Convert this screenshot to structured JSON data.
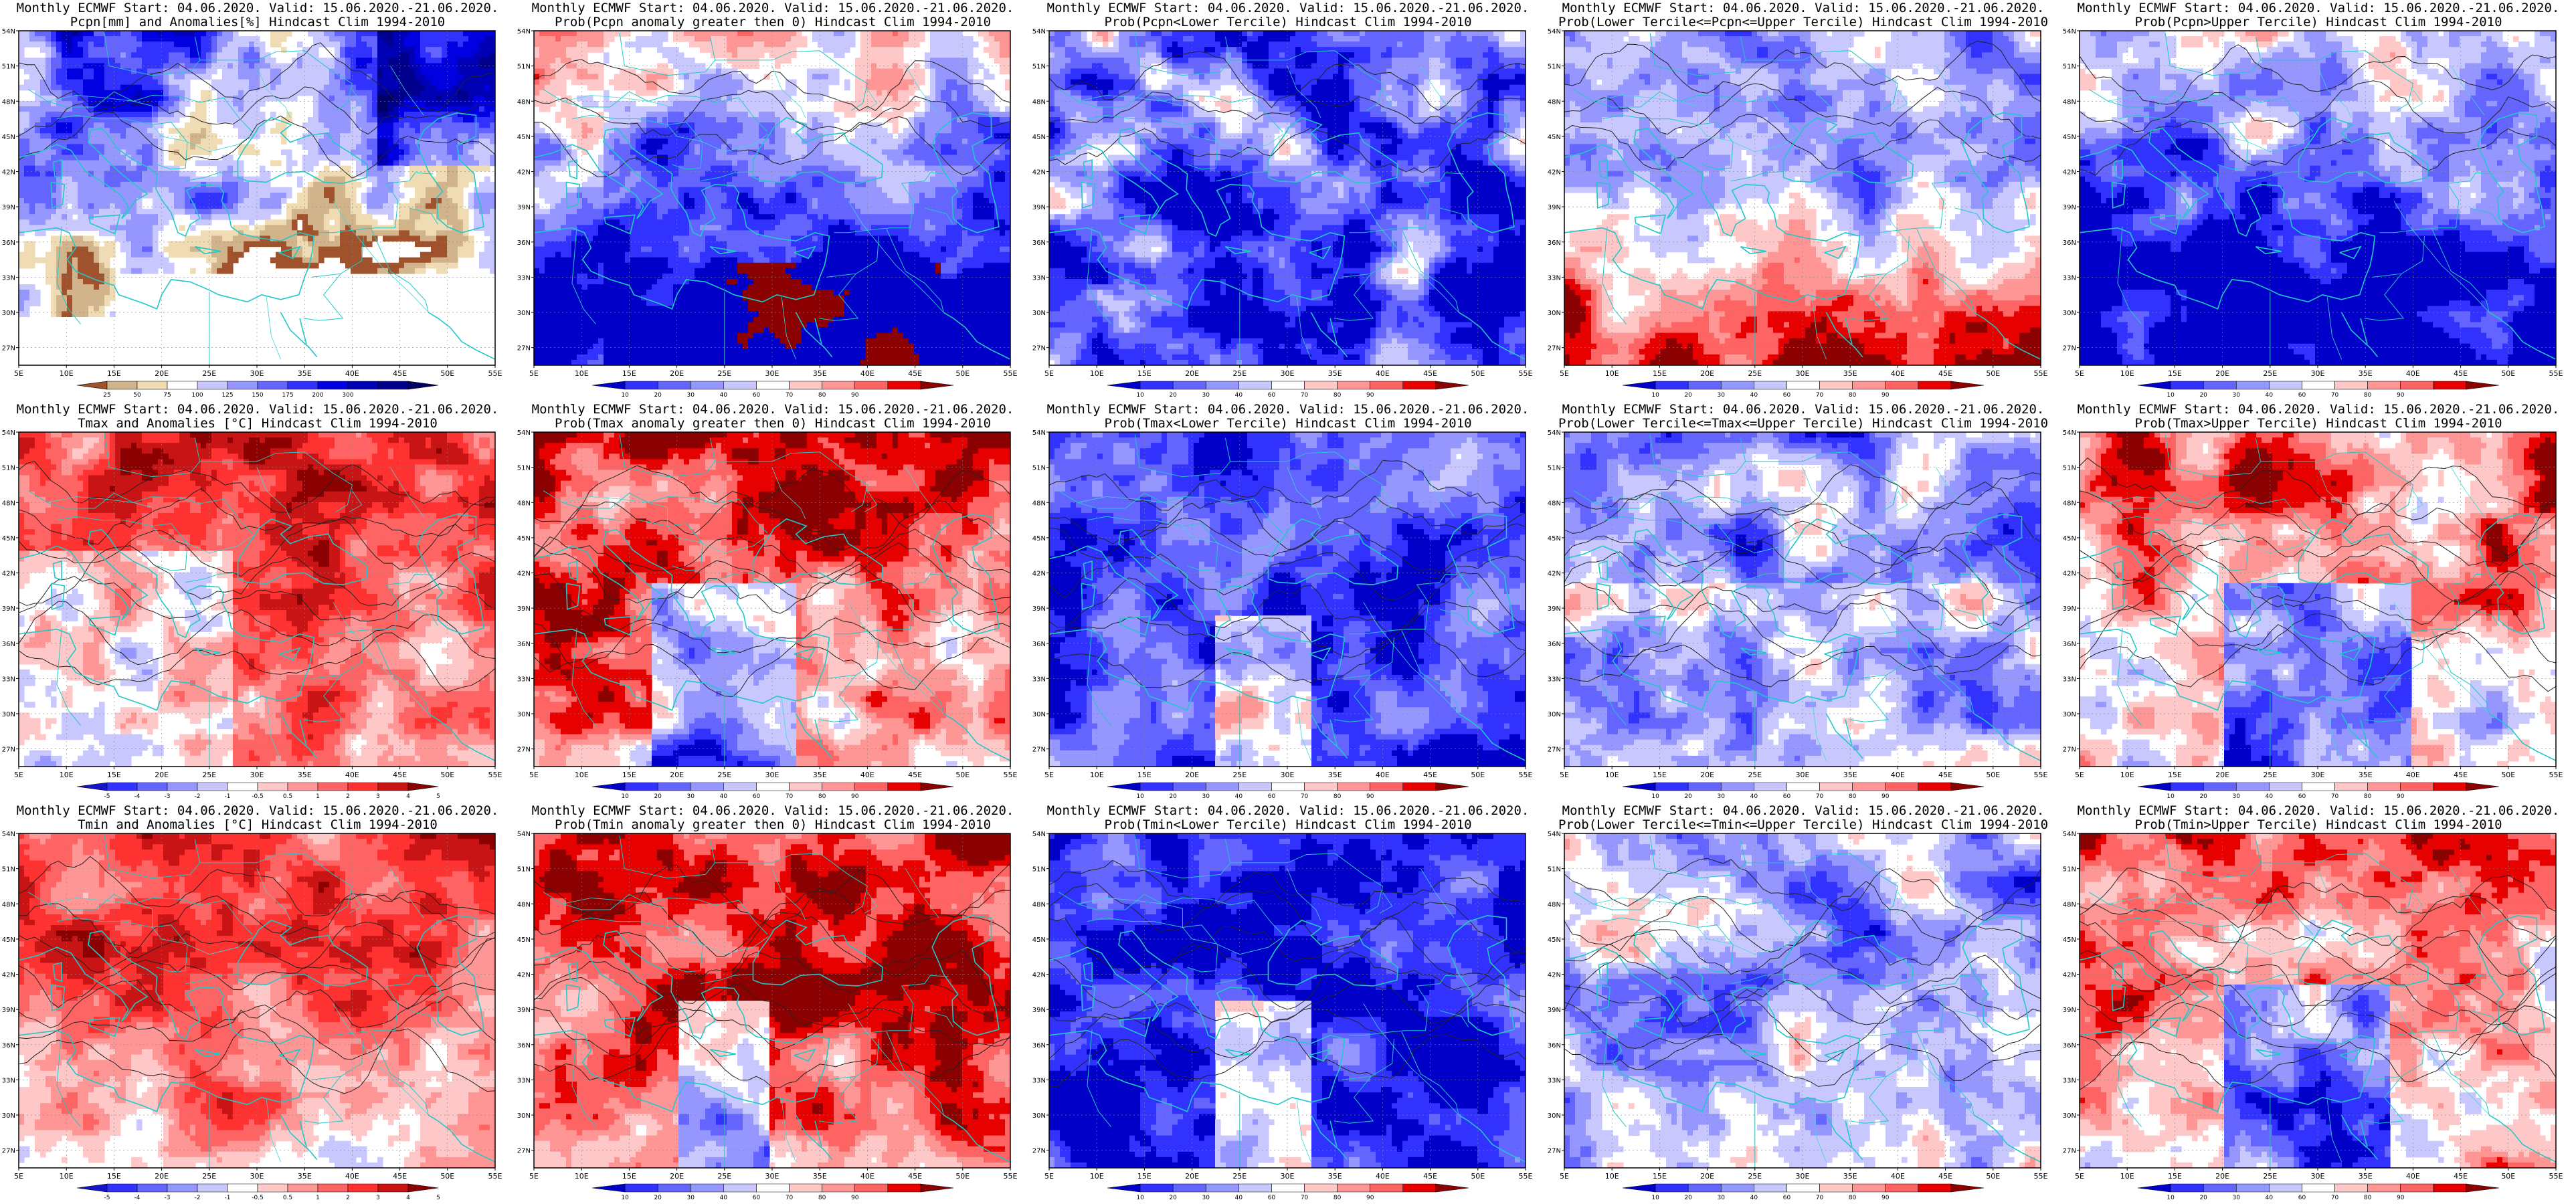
{
  "palettes": {
    "precip": [
      "#a0522d",
      "#d2b48c",
      "#f0dcb4",
      "#ffffff",
      "#c8c8ff",
      "#9696ff",
      "#6464ff",
      "#3232ff",
      "#0000e0",
      "#0000b4",
      "#00008c",
      "#000064"
    ],
    "temp": [
      "#1414c8",
      "#3232ff",
      "#6464ff",
      "#9696ff",
      "#c8c8ff",
      "#ffffff",
      "#ffc8c8",
      "#ff9696",
      "#ff6464",
      "#ff3232",
      "#c81414",
      "#8b0000"
    ],
    "prob": [
      "#0000c8",
      "#3232ff",
      "#6464ff",
      "#9696ff",
      "#c8c8ff",
      "#ffffff",
      "#ffc8c8",
      "#ff9696",
      "#ff6464",
      "#e60000",
      "#8b0000"
    ]
  },
  "axes": {
    "lon_ticks": [
      "5E",
      "10E",
      "15E",
      "20E",
      "25E",
      "30E",
      "35E",
      "40E",
      "45E",
      "50E",
      "55E"
    ],
    "lat_ticks": [
      "27N",
      "30N",
      "33N",
      "36N",
      "39N",
      "42N",
      "45N",
      "48N",
      "51N",
      "54N"
    ]
  },
  "rows": [
    {
      "variable": "pcpn",
      "panels": [
        {
          "title1": "Monthly ECMWF Start: 04.06.2020. Valid: 15.06.2020.-21.06.2020.",
          "title2": "Pcpn[mm] and Anomalies[%] Hindcast Clim 1994-2010",
          "palette": "precip",
          "legend_labels": [
            "25",
            "50",
            "75",
            "100",
            "125",
            "150",
            "175",
            "200",
            "300"
          ],
          "field": "pcpn_anom"
        },
        {
          "title1": "Monthly ECMWF Start: 04.06.2020. Valid: 15.06.2020.-21.06.2020.",
          "title2": "Prob(Pcpn anomaly greater then 0) Hindcast Clim 1994-2010",
          "palette": "prob",
          "legend_labels": [
            "10",
            "20",
            "30",
            "40",
            "60",
            "70",
            "80",
            "90"
          ],
          "field": "pcpn_probpos"
        },
        {
          "title1": "Monthly ECMWF Start: 04.06.2020. Valid: 15.06.2020.-21.06.2020.",
          "title2": "Prob(Pcpn<Lower Tercile) Hindcast Clim 1994-2010",
          "palette": "prob",
          "legend_labels": [
            "10",
            "20",
            "30",
            "40",
            "60",
            "70",
            "80",
            "90"
          ],
          "field": "pcpn_lower"
        },
        {
          "title1": "Monthly ECMWF Start: 04.06.2020. Valid: 15.06.2020.-21.06.2020.",
          "title2": "Prob(Lower Tercile<=Pcpn<=Upper Tercile) Hindcast Clim 1994-2010",
          "palette": "prob",
          "legend_labels": [
            "10",
            "20",
            "30",
            "40",
            "60",
            "70",
            "80",
            "90"
          ],
          "field": "pcpn_middle"
        },
        {
          "title1": "Monthly ECMWF Start: 04.06.2020. Valid: 15.06.2020.-21.06.2020.",
          "title2": "Prob(Pcpn>Upper Tercile) Hindcast Clim 1994-2010",
          "palette": "prob",
          "legend_labels": [
            "10",
            "20",
            "30",
            "40",
            "60",
            "70",
            "80",
            "90"
          ],
          "field": "pcpn_upper"
        }
      ]
    },
    {
      "variable": "tmax",
      "panels": [
        {
          "title1": "Monthly ECMWF Start: 04.06.2020. Valid: 15.06.2020.-21.06.2020.",
          "title2": "Tmax and Anomalies [°C] Hindcast Clim 1994-2010",
          "palette": "temp",
          "legend_labels": [
            "-5",
            "-4",
            "-3",
            "-2",
            "-1",
            "-0.5",
            "0.5",
            "1",
            "2",
            "3",
            "4",
            "5"
          ],
          "field": "tmax_anom"
        },
        {
          "title1": "Monthly ECMWF Start: 04.06.2020. Valid: 15.06.2020.-21.06.2020.",
          "title2": "Prob(Tmax anomaly greater then 0) Hindcast Clim 1994-2010",
          "palette": "prob",
          "legend_labels": [
            "10",
            "20",
            "30",
            "40",
            "60",
            "70",
            "80",
            "90"
          ],
          "field": "tmax_probpos"
        },
        {
          "title1": "Monthly ECMWF Start: 04.06.2020. Valid: 15.06.2020.-21.06.2020.",
          "title2": "Prob(Tmax<Lower Tercile) Hindcast Clim 1994-2010",
          "palette": "prob",
          "legend_labels": [
            "10",
            "20",
            "30",
            "40",
            "60",
            "70",
            "80",
            "90"
          ],
          "field": "tmax_lower"
        },
        {
          "title1": "Monthly ECMWF Start: 04.06.2020. Valid: 15.06.2020.-21.06.2020.",
          "title2": "Prob(Lower Tercile<=Tmax<=Upper Tercile) Hindcast Clim 1994-2010",
          "palette": "prob",
          "legend_labels": [
            "10",
            "20",
            "30",
            "40",
            "60",
            "70",
            "80",
            "90"
          ],
          "field": "tmax_middle"
        },
        {
          "title1": "Monthly ECMWF Start: 04.06.2020. Valid: 15.06.2020.-21.06.2020.",
          "title2": "Prob(Tmax>Upper Tercile) Hindcast Clim 1994-2010",
          "palette": "prob",
          "legend_labels": [
            "10",
            "20",
            "30",
            "40",
            "60",
            "70",
            "80",
            "90"
          ],
          "field": "tmax_upper"
        }
      ]
    },
    {
      "variable": "tmin",
      "panels": [
        {
          "title1": "Monthly ECMWF Start: 04.06.2020. Valid: 15.06.2020.-21.06.2020.",
          "title2": "Tmin and Anomalies [°C] Hindcast Clim 1994-2010",
          "palette": "temp",
          "legend_labels": [
            "-5",
            "-4",
            "-3",
            "-2",
            "-1",
            "-0.5",
            "0.5",
            "1",
            "2",
            "3",
            "4",
            "5"
          ],
          "field": "tmin_anom"
        },
        {
          "title1": "Monthly ECMWF Start: 04.06.2020. Valid: 15.06.2020.-21.06.2020.",
          "title2": "Prob(Tmin anomaly greater then 0) Hindcast Clim 1994-2010",
          "palette": "prob",
          "legend_labels": [
            "10",
            "20",
            "30",
            "40",
            "60",
            "70",
            "80",
            "90"
          ],
          "field": "tmin_probpos"
        },
        {
          "title1": "Monthly ECMWF Start: 04.06.2020. Valid: 15.06.2020.-21.06.2020.",
          "title2": "Prob(Tmin<Lower Tercile) Hindcast Clim 1994-2010",
          "palette": "prob",
          "legend_labels": [
            "10",
            "20",
            "30",
            "40",
            "60",
            "70",
            "80",
            "90"
          ],
          "field": "tmin_lower"
        },
        {
          "title1": "Monthly ECMWF Start: 04.06.2020. Valid: 15.06.2020.-21.06.2020.",
          "title2": "Prob(Lower Tercile<=Tmin<=Upper Tercile) Hindcast Clim 1994-2010",
          "palette": "prob",
          "legend_labels": [
            "10",
            "20",
            "30",
            "40",
            "60",
            "70",
            "80",
            "90"
          ],
          "field": "tmin_middle"
        },
        {
          "title1": "Monthly ECMWF Start: 04.06.2020. Valid: 15.06.2020.-21.06.2020.",
          "title2": "Prob(Tmin>Upper Tercile) Hindcast Clim 1994-2010",
          "palette": "prob",
          "legend_labels": [
            "10",
            "20",
            "30",
            "40",
            "60",
            "70",
            "80",
            "90"
          ],
          "field": "tmin_upper"
        }
      ]
    }
  ]
}
